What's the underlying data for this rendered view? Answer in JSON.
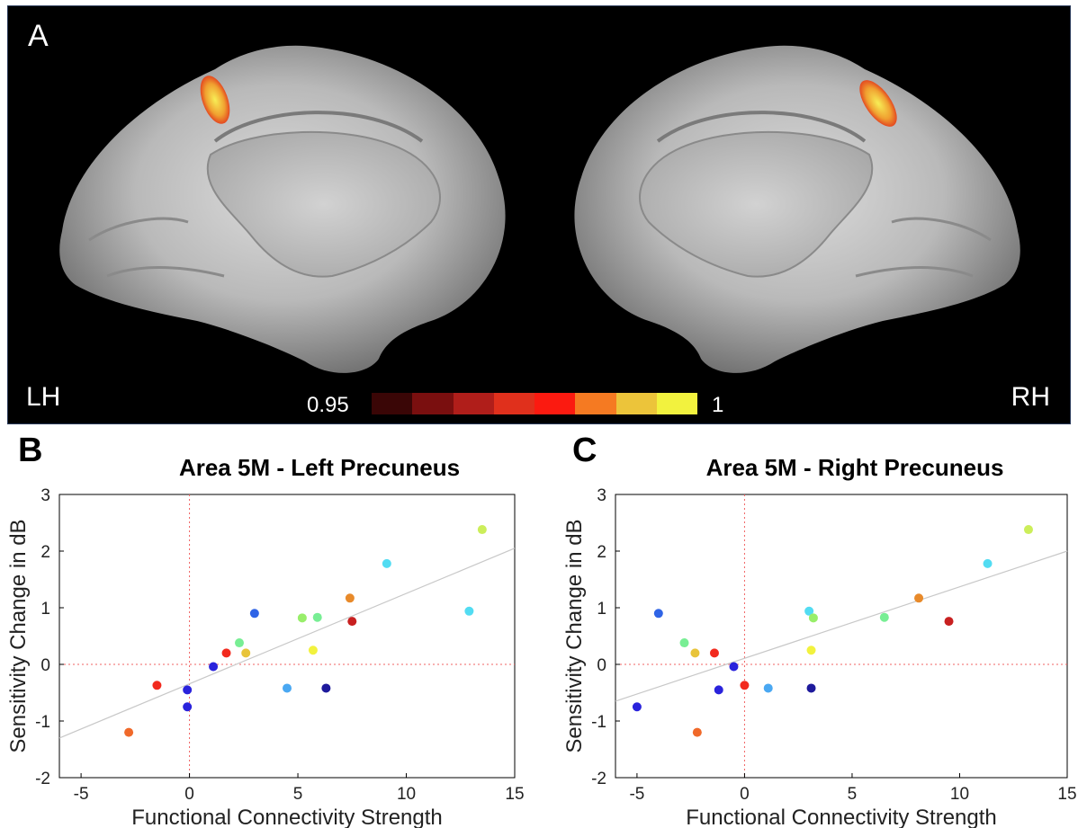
{
  "panel_a": {
    "letter": "A",
    "left_label": "LH",
    "right_label": "RH",
    "colorbar": {
      "min_label": "0.95",
      "max_label": "1",
      "colors": [
        "#3a0606",
        "#7a0f0f",
        "#b01e1a",
        "#e0301c",
        "#fb1a10",
        "#f57a22",
        "#ecc43a",
        "#f2f23e"
      ]
    }
  },
  "chart_data": [
    {
      "panel": "B",
      "type": "scatter",
      "title": "Area 5M - Left Precuneus",
      "xlabel": "Functional Connectivity Strength",
      "ylabel": "Sensitivity Change in dB",
      "xlim": [
        -6,
        15
      ],
      "ylim": [
        -2,
        3
      ],
      "xticks": [
        -5,
        0,
        5,
        10,
        15
      ],
      "yticks": [
        -2,
        -1,
        0,
        1,
        2,
        3
      ],
      "fit_line": {
        "x": [
          -6,
          15
        ],
        "y": [
          -1.3,
          2.05
        ]
      },
      "points": [
        {
          "x": -2.8,
          "y": -1.2,
          "color": "#f0692a"
        },
        {
          "x": -1.5,
          "y": -0.37,
          "color": "#f22a1e"
        },
        {
          "x": -0.1,
          "y": -0.45,
          "color": "#2a23dc"
        },
        {
          "x": -0.1,
          "y": -0.75,
          "color": "#2a23dc"
        },
        {
          "x": 1.1,
          "y": -0.04,
          "color": "#2a23dc"
        },
        {
          "x": 1.7,
          "y": 0.2,
          "color": "#f22a1e"
        },
        {
          "x": 2.3,
          "y": 0.38,
          "color": "#78ee94"
        },
        {
          "x": 2.6,
          "y": 0.2,
          "color": "#e8c43a"
        },
        {
          "x": 3.0,
          "y": 0.9,
          "color": "#2f64e6"
        },
        {
          "x": 4.5,
          "y": -0.42,
          "color": "#4aa8f2"
        },
        {
          "x": 5.2,
          "y": 0.82,
          "color": "#98ee6a"
        },
        {
          "x": 5.7,
          "y": 0.25,
          "color": "#f2f23e"
        },
        {
          "x": 5.9,
          "y": 0.83,
          "color": "#78ee94"
        },
        {
          "x": 6.3,
          "y": -0.42,
          "color": "#1e1a9c"
        },
        {
          "x": 7.4,
          "y": 1.17,
          "color": "#e88a2a"
        },
        {
          "x": 7.5,
          "y": 0.76,
          "color": "#c82020"
        },
        {
          "x": 9.1,
          "y": 1.78,
          "color": "#52dcf2"
        },
        {
          "x": 12.9,
          "y": 0.94,
          "color": "#52dcf2"
        },
        {
          "x": 13.5,
          "y": 2.38,
          "color": "#ccee5a"
        }
      ]
    },
    {
      "panel": "C",
      "type": "scatter",
      "title": "Area 5M - Right Precuneus",
      "xlabel": "Functional Connectivity Strength",
      "ylabel": "Sensitivity Change in dB",
      "xlim": [
        -6,
        15
      ],
      "ylim": [
        -2,
        3
      ],
      "xticks": [
        -5,
        0,
        5,
        10,
        15
      ],
      "yticks": [
        -2,
        -1,
        0,
        1,
        2,
        3
      ],
      "fit_line": {
        "x": [
          -6,
          15
        ],
        "y": [
          -0.65,
          2.0
        ]
      },
      "points": [
        {
          "x": -5.0,
          "y": -0.75,
          "color": "#2a23dc"
        },
        {
          "x": -4.0,
          "y": 0.9,
          "color": "#2f64e6"
        },
        {
          "x": -2.8,
          "y": 0.38,
          "color": "#78ee94"
        },
        {
          "x": -2.3,
          "y": 0.2,
          "color": "#e8c43a"
        },
        {
          "x": -2.2,
          "y": -1.2,
          "color": "#f0692a"
        },
        {
          "x": -1.4,
          "y": 0.2,
          "color": "#f22a1e"
        },
        {
          "x": -1.2,
          "y": -0.45,
          "color": "#2a23dc"
        },
        {
          "x": -0.5,
          "y": -0.04,
          "color": "#2a23dc"
        },
        {
          "x": 0.0,
          "y": -0.37,
          "color": "#f22a1e"
        },
        {
          "x": 1.1,
          "y": -0.42,
          "color": "#4aa8f2"
        },
        {
          "x": 3.0,
          "y": 0.94,
          "color": "#52dcf2"
        },
        {
          "x": 3.1,
          "y": 0.25,
          "color": "#f2f23e"
        },
        {
          "x": 3.1,
          "y": -0.42,
          "color": "#1e1a9c"
        },
        {
          "x": 3.2,
          "y": 0.82,
          "color": "#98ee6a"
        },
        {
          "x": 6.5,
          "y": 0.83,
          "color": "#78ee94"
        },
        {
          "x": 8.1,
          "y": 1.17,
          "color": "#e88a2a"
        },
        {
          "x": 9.5,
          "y": 0.76,
          "color": "#c82020"
        },
        {
          "x": 11.3,
          "y": 1.78,
          "color": "#52dcf2"
        },
        {
          "x": 13.2,
          "y": 2.38,
          "color": "#ccee5a"
        }
      ]
    }
  ]
}
